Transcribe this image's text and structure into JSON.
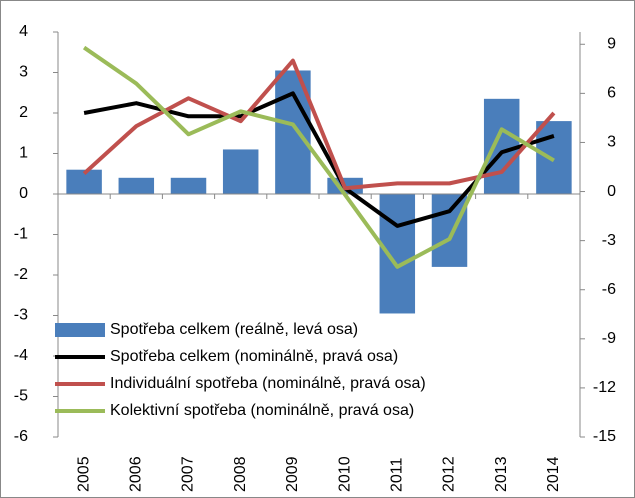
{
  "chart_data": {
    "type": "bar",
    "categories": [
      "2005",
      "2006",
      "2007",
      "2008",
      "2009",
      "2010",
      "2011",
      "2012",
      "2013",
      "2014"
    ],
    "ylim": [
      -6,
      4
    ],
    "yticks": [
      -6,
      -5,
      -4,
      -3,
      -2,
      -1,
      0,
      1,
      2,
      3,
      4
    ],
    "y2lim": [
      -15,
      9.75
    ],
    "y2ticks": [
      -15,
      -12,
      -9,
      -6,
      -3,
      0,
      3,
      6,
      9
    ],
    "legend": "lower left",
    "series": [
      {
        "name": "Spotřeba celkem (reálně, levá osa)",
        "type": "bar",
        "color": "#4a7ebb",
        "values": [
          0.6,
          0.4,
          0.4,
          1.1,
          3.05,
          0.4,
          -2.95,
          -1.8,
          2.35,
          1.8
        ]
      },
      {
        "name": "Spotřeba celkem (nominálně, pravá osa)",
        "type": "line",
        "axis": "y2",
        "color": "#000000",
        "values": [
          4.8,
          5.4,
          4.6,
          4.6,
          6.0,
          0.2,
          -2.1,
          -1.2,
          2.4,
          3.4
        ]
      },
      {
        "name": "Individuální spotřeba (nominálně, pravá osa)",
        "type": "line",
        "axis": "y2",
        "color": "#c0504d",
        "values": [
          1.1,
          4.0,
          5.7,
          4.3,
          8.0,
          0.2,
          0.5,
          0.5,
          1.2,
          4.8
        ]
      },
      {
        "name": "Kolektivní spotřeba (nominálně, pravá osa)",
        "type": "line",
        "axis": "y2",
        "color": "#9bbb59",
        "values": [
          8.8,
          6.6,
          3.5,
          4.9,
          4.1,
          -0.2,
          -4.6,
          -2.9,
          3.8,
          1.9
        ]
      }
    ]
  }
}
